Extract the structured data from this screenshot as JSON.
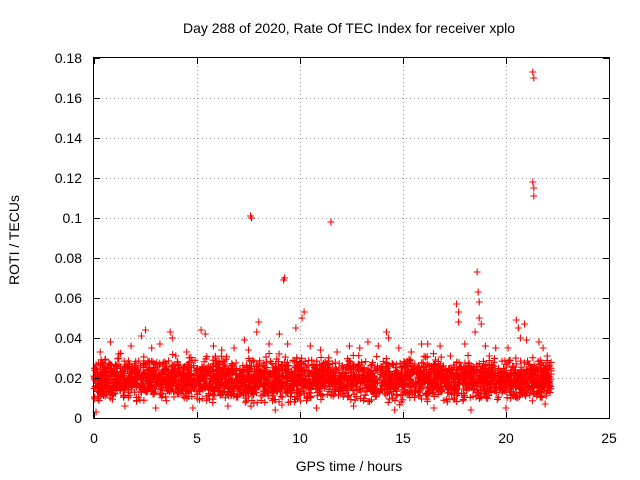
{
  "chart_data": {
    "type": "scatter",
    "title": "Day 288 of 2020, Rate Of TEC Index for receiver xplo",
    "xlabel": "GPS time / hours",
    "ylabel": "ROTI / TECUs",
    "xlim": [
      0,
      25
    ],
    "ylim": [
      0,
      0.18
    ],
    "x_ticks": [
      "0",
      "5",
      "10",
      "15",
      "20",
      "25"
    ],
    "y_ticks": [
      "0",
      "0.02",
      "0.04",
      "0.06",
      "0.08",
      "0.1",
      "0.12",
      "0.14",
      "0.16",
      "0.18"
    ],
    "grid": true,
    "marker": "+",
    "color": "#ff0000",
    "dense_band": {
      "x_range": [
        0,
        22.2
      ],
      "y_typical": [
        0.005,
        0.03
      ],
      "description": "dense cloud of points"
    },
    "series": [
      {
        "name": "ROTI",
        "points": [
          [
            0.3,
            0.033
          ],
          [
            0.8,
            0.038
          ],
          [
            1.2,
            0.032
          ],
          [
            1.8,
            0.036
          ],
          [
            2.3,
            0.041
          ],
          [
            2.5,
            0.044
          ],
          [
            2.8,
            0.035
          ],
          [
            3.2,
            0.037
          ],
          [
            3.7,
            0.043
          ],
          [
            3.8,
            0.04
          ],
          [
            4.5,
            0.033
          ],
          [
            5.2,
            0.044
          ],
          [
            5.4,
            0.042
          ],
          [
            5.8,
            0.036
          ],
          [
            6.2,
            0.034
          ],
          [
            6.8,
            0.035
          ],
          [
            7.3,
            0.039
          ],
          [
            7.5,
            0.034
          ],
          [
            7.6,
            0.101
          ],
          [
            7.65,
            0.1
          ],
          [
            8.0,
            0.048
          ],
          [
            7.9,
            0.043
          ],
          [
            8.5,
            0.037
          ],
          [
            9.0,
            0.042
          ],
          [
            9.2,
            0.069
          ],
          [
            9.25,
            0.07
          ],
          [
            9.4,
            0.037
          ],
          [
            9.8,
            0.045
          ],
          [
            10.1,
            0.05
          ],
          [
            10.2,
            0.053
          ],
          [
            10.5,
            0.036
          ],
          [
            11.0,
            0.034
          ],
          [
            11.5,
            0.098
          ],
          [
            11.8,
            0.033
          ],
          [
            12.4,
            0.036
          ],
          [
            12.9,
            0.035
          ],
          [
            13.3,
            0.038
          ],
          [
            13.8,
            0.036
          ],
          [
            14.2,
            0.043
          ],
          [
            14.3,
            0.04
          ],
          [
            14.8,
            0.035
          ],
          [
            15.4,
            0.033
          ],
          [
            15.9,
            0.037
          ],
          [
            16.2,
            0.037
          ],
          [
            16.8,
            0.036
          ],
          [
            17.3,
            0.031
          ],
          [
            17.6,
            0.057
          ],
          [
            17.7,
            0.053
          ],
          [
            17.7,
            0.048
          ],
          [
            18.0,
            0.037
          ],
          [
            18.5,
            0.043
          ],
          [
            18.6,
            0.073
          ],
          [
            18.65,
            0.063
          ],
          [
            18.7,
            0.058
          ],
          [
            18.7,
            0.05
          ],
          [
            18.8,
            0.047
          ],
          [
            19.0,
            0.036
          ],
          [
            19.5,
            0.035
          ],
          [
            20.1,
            0.035
          ],
          [
            20.5,
            0.049
          ],
          [
            20.6,
            0.045
          ],
          [
            20.7,
            0.04
          ],
          [
            20.9,
            0.047
          ],
          [
            21.0,
            0.039
          ],
          [
            21.3,
            0.173
          ],
          [
            21.35,
            0.17
          ],
          [
            21.3,
            0.118
          ],
          [
            21.35,
            0.115
          ],
          [
            21.35,
            0.111
          ],
          [
            21.6,
            0.038
          ],
          [
            21.8,
            0.035
          ],
          [
            22.0,
            0.031
          ],
          [
            0.1,
            0.003
          ],
          [
            1.5,
            0.006
          ],
          [
            3.0,
            0.005
          ],
          [
            4.8,
            0.005
          ],
          [
            6.5,
            0.006
          ],
          [
            8.8,
            0.004
          ],
          [
            10.8,
            0.005
          ],
          [
            12.6,
            0.006
          ],
          [
            14.6,
            0.004
          ],
          [
            16.5,
            0.005
          ],
          [
            18.3,
            0.004
          ],
          [
            20.0,
            0.005
          ],
          [
            21.9,
            0.007
          ]
        ]
      }
    ]
  }
}
